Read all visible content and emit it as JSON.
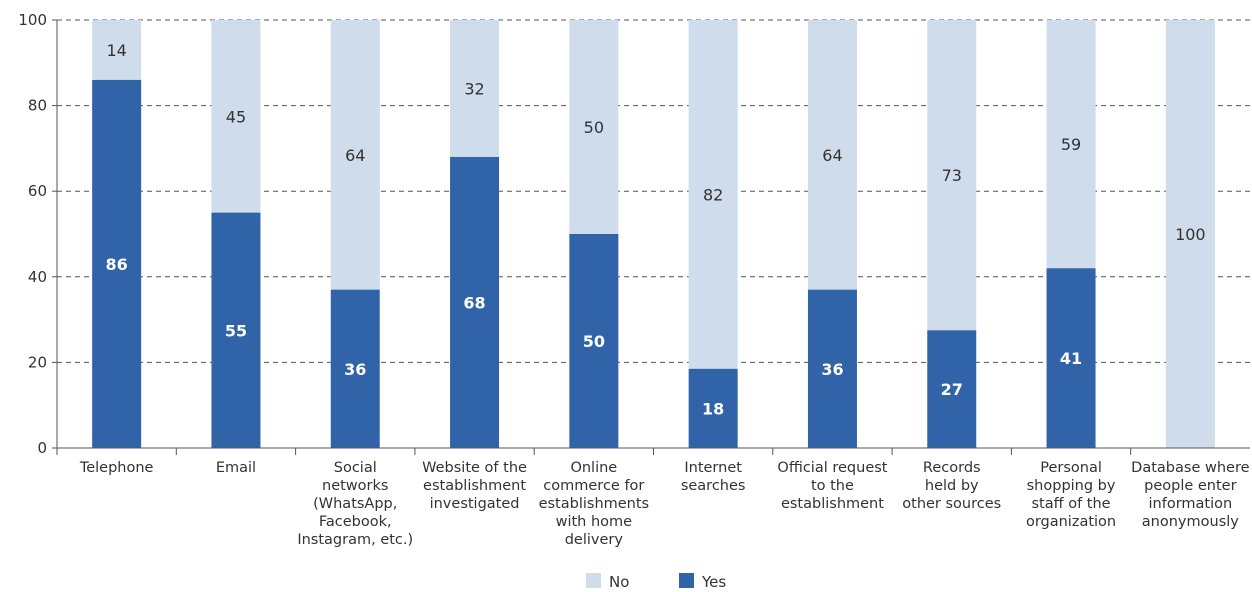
{
  "chart_data": {
    "type": "bar",
    "stacked": true,
    "categories": [
      "Telephone",
      "Email",
      "Social networks (WhatsApp, Facebook, Instagram, etc.)",
      "Website of the establishment investigated",
      "Online commerce for establishments with home delivery",
      "Internet searches",
      "Official request to the establishment",
      "Records held by other sources",
      "Personal shopping by staff of the organization",
      "Database where people enter information anonymously"
    ],
    "category_lines": [
      [
        "Telephone"
      ],
      [
        "Email"
      ],
      [
        "Social",
        "networks",
        "(WhatsApp,",
        "Facebook,",
        "Instagram, etc.)"
      ],
      [
        "Website of the",
        "establishment",
        "investigated"
      ],
      [
        "Online",
        "commerce for",
        "establishments",
        "with home",
        "delivery"
      ],
      [
        "Internet",
        "searches"
      ],
      [
        "Official request",
        "to the",
        "establishment"
      ],
      [
        "Records",
        "held by",
        "other sources"
      ],
      [
        "Personal",
        "shopping by",
        "staff of the",
        "organization"
      ],
      [
        "Database where",
        "people enter",
        "information",
        "anonymously"
      ]
    ],
    "series": [
      {
        "name": "Yes",
        "color": "#3163a8",
        "values": [
          86,
          55,
          36,
          68,
          50,
          18,
          36,
          27,
          41,
          0
        ]
      },
      {
        "name": "No",
        "color": "#cfdcec",
        "values": [
          14,
          45,
          64,
          32,
          50,
          82,
          64,
          73,
          59,
          100
        ]
      }
    ],
    "bar_display_heights": {
      "Yes": [
        86,
        55,
        37,
        68,
        50,
        18.5,
        37,
        27.5,
        42,
        0
      ]
    },
    "ylim": [
      0,
      100
    ],
    "yticks": [
      0,
      20,
      40,
      60,
      80,
      100
    ],
    "grid": "dashed horizontal",
    "legend": {
      "position": "bottom-center",
      "order": [
        "No",
        "Yes"
      ]
    },
    "title": "",
    "xlabel": "",
    "ylabel": ""
  }
}
